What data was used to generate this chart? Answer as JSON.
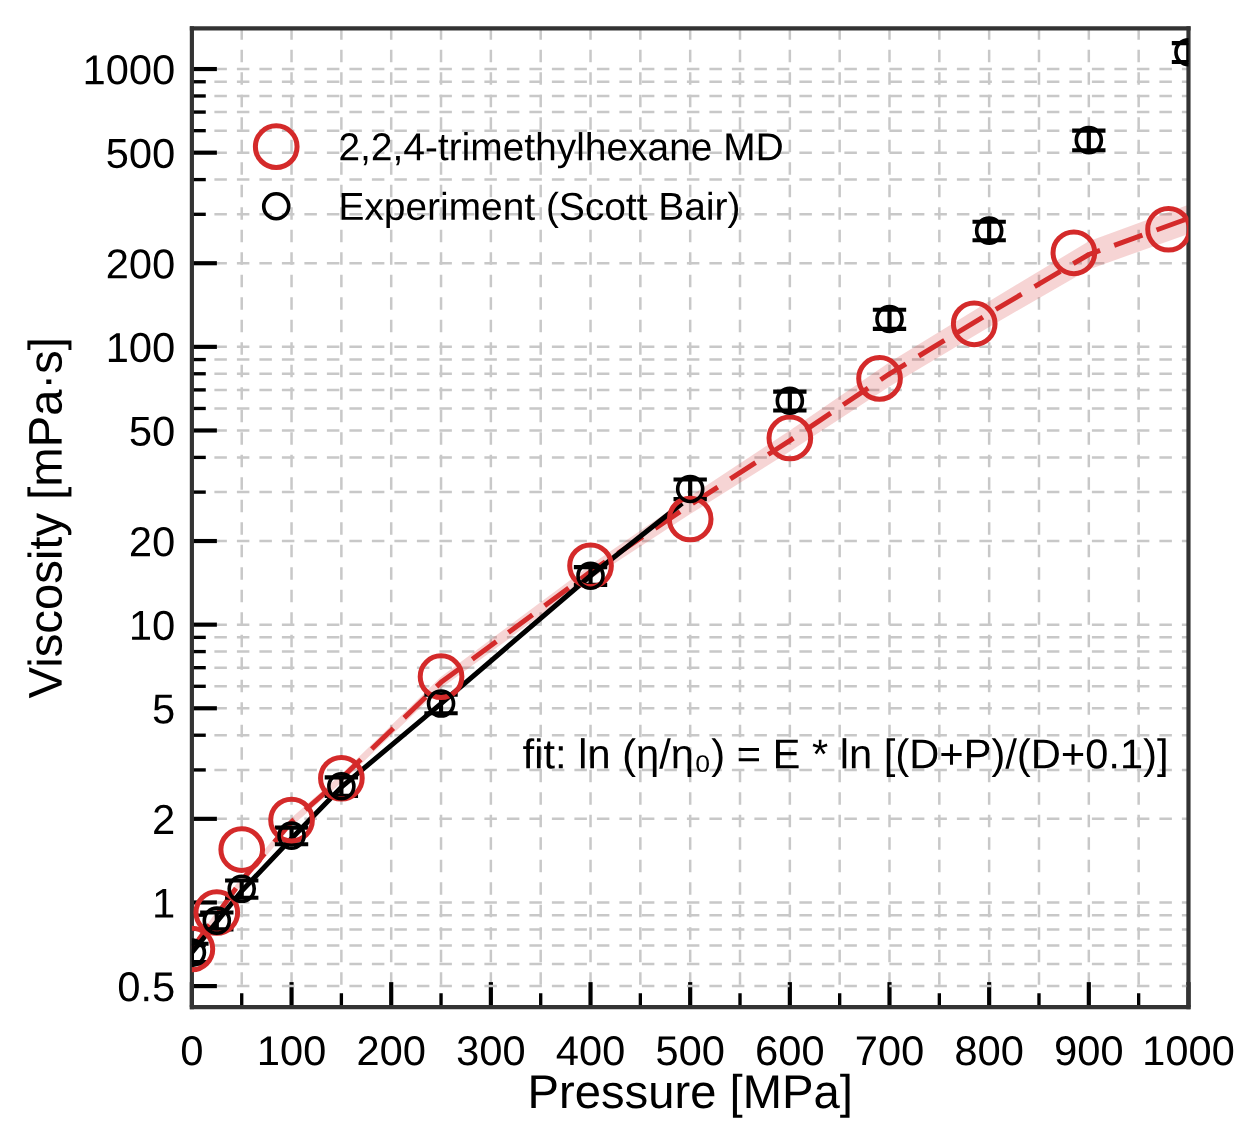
{
  "chart_data": {
    "type": "scatter",
    "xlabel": "Pressure [MPa]",
    "ylabel": "Viscosity [mPa·s]",
    "xlim": [
      0,
      1000
    ],
    "ylim": [
      0.42,
      1400
    ],
    "log": "y",
    "xticks": [
      0,
      100,
      200,
      300,
      400,
      500,
      600,
      700,
      800,
      900,
      1000
    ],
    "yticks": [
      0.5,
      1,
      2,
      5,
      10,
      20,
      50,
      100,
      200,
      500,
      1000
    ],
    "grid": true,
    "legend": "top left",
    "annotations": [
      "fit: ln (η/η₀) = E * ln [(D+P)/(D+0.1)]"
    ],
    "series": [
      {
        "type": "line",
        "color": "#d42a2a",
        "line_style": "dashed",
        "marker": "none",
        "x": [
          0,
          50,
          100,
          150,
          250,
          400,
          500,
          600,
          700,
          800,
          900,
          1000
        ],
        "values": [
          0.68,
          1.2,
          1.95,
          2.8,
          6.2,
          15.5,
          27,
          46,
          80,
          132,
          215,
          290
        ],
        "lower": [
          0.66,
          1.16,
          1.88,
          2.7,
          5.9,
          14.6,
          25,
          42,
          72,
          118,
          190,
          255
        ],
        "upper": [
          0.7,
          1.24,
          2.02,
          2.9,
          6.5,
          16.4,
          29,
          50,
          88,
          146,
          240,
          325
        ]
      },
      {
        "type": "line",
        "color": "#000000",
        "line_style": "solid",
        "marker": "none",
        "x": [
          0,
          50,
          100,
          150,
          250,
          400,
          490
        ],
        "values": [
          0.66,
          1.1,
          1.7,
          2.6,
          5.2,
          15,
          27
        ]
      },
      {
        "name": "2,2,4-trimethylhexane MD",
        "color": "#d42a2a",
        "marker": "circle",
        "x": [
          0,
          25,
          50,
          100,
          150,
          250,
          400,
          500,
          600,
          690,
          785,
          885,
          980
        ],
        "values": [
          0.68,
          0.92,
          1.55,
          1.98,
          2.8,
          6.5,
          16.3,
          24,
          47,
          77,
          121,
          218,
          265
        ]
      },
      {
        "name": "Experiment (Scott Bair)",
        "color": "#000000",
        "marker": "circle",
        "x": [
          0,
          25,
          50,
          100,
          150,
          250,
          400,
          500,
          600,
          700,
          800,
          900,
          1000
        ],
        "values": [
          0.66,
          0.86,
          1.12,
          1.74,
          2.62,
          5.2,
          15,
          30.8,
          64,
          126,
          262,
          555,
          1150
        ],
        "errors": [
          0.05,
          0.06,
          0.08,
          0.12,
          0.2,
          0.4,
          1.1,
          2.5,
          5,
          10,
          20,
          45,
          90
        ]
      }
    ]
  }
}
